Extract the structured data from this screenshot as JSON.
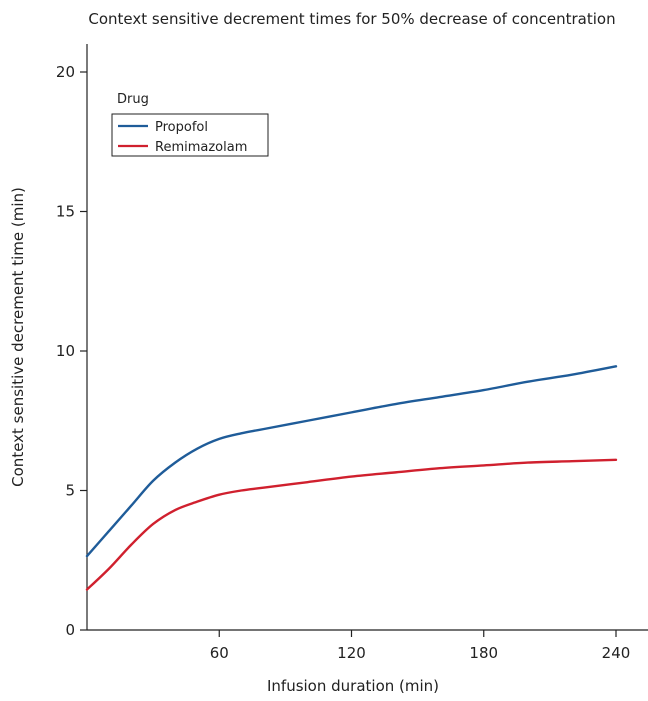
{
  "chart_data": {
    "type": "line",
    "title": "Context sensitive decrement times for 50% decrease of concentration",
    "xlabel": "Infusion duration (min)",
    "ylabel": "Context sensitive decrement time (min)",
    "xlim": [
      0,
      250
    ],
    "ylim": [
      0,
      20
    ],
    "xticks": [
      60,
      120,
      180,
      240
    ],
    "yticks": [
      0,
      5,
      10,
      15,
      20
    ],
    "grid": false,
    "legend": {
      "title": "Drug",
      "placement": "top-left"
    },
    "series": [
      {
        "name": "Propofol",
        "color": "#1f5c99",
        "x": [
          0,
          10,
          20,
          30,
          40,
          50,
          60,
          70,
          80,
          100,
          120,
          140,
          160,
          180,
          200,
          220,
          240
        ],
        "y": [
          2.65,
          3.55,
          4.45,
          5.35,
          6.0,
          6.5,
          6.85,
          7.05,
          7.2,
          7.5,
          7.8,
          8.1,
          8.35,
          8.6,
          8.9,
          9.15,
          9.45
        ]
      },
      {
        "name": "Remimazolam",
        "color": "#d0202e",
        "x": [
          0,
          10,
          20,
          30,
          40,
          50,
          60,
          70,
          80,
          100,
          120,
          140,
          160,
          180,
          200,
          220,
          240
        ],
        "y": [
          1.45,
          2.2,
          3.05,
          3.8,
          4.3,
          4.6,
          4.85,
          5.0,
          5.1,
          5.3,
          5.5,
          5.65,
          5.8,
          5.9,
          6.0,
          6.05,
          6.1
        ]
      }
    ]
  }
}
